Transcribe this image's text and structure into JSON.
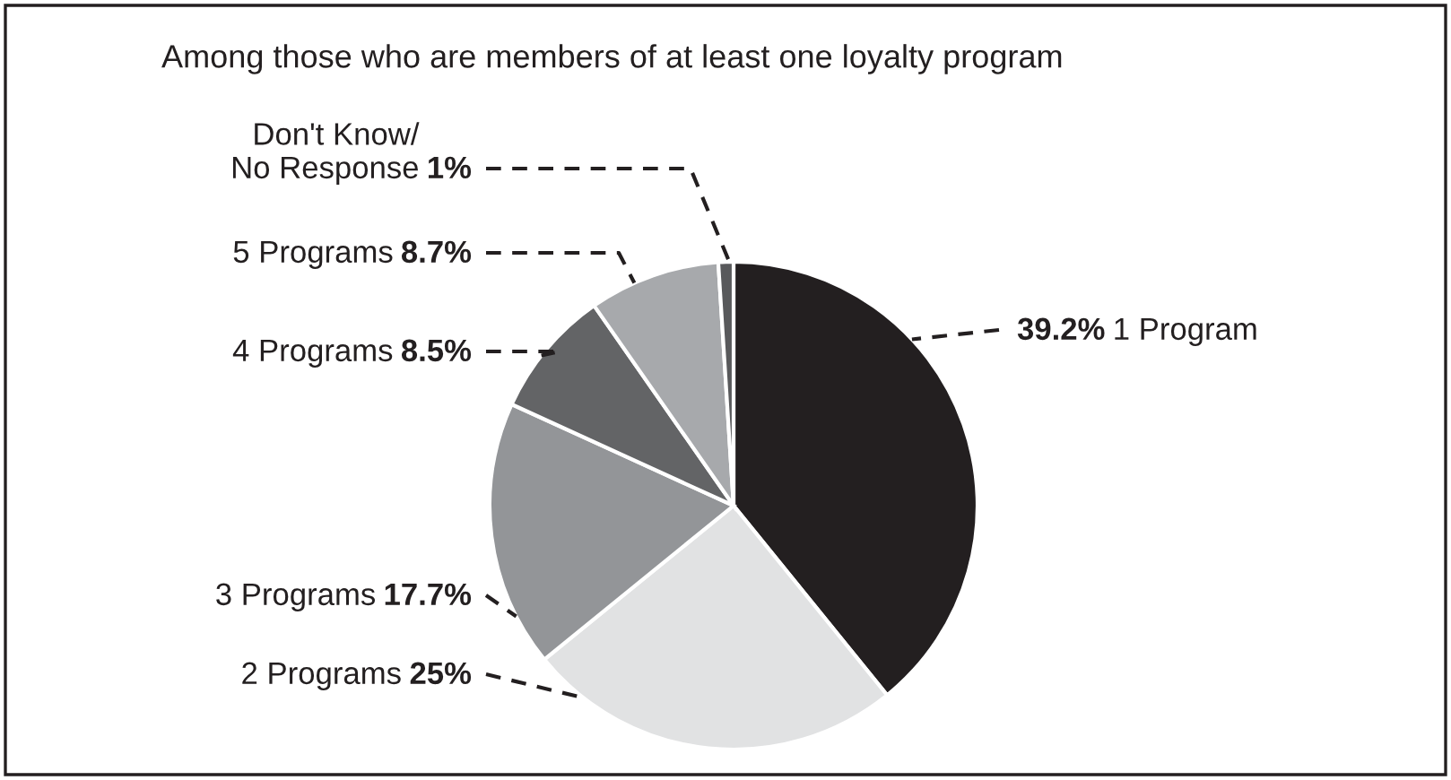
{
  "chart_data": {
    "type": "pie",
    "title": "Among those who are members of at least one loyalty program",
    "categories": [
      "1 Program",
      "2 Programs",
      "3 Programs",
      "4 Programs",
      "5 Programs",
      "Don't Know/\nNo Response"
    ],
    "values": [
      39.2,
      25,
      17.7,
      8.5,
      8.7,
      1
    ],
    "value_labels": [
      "39.2%",
      "25%",
      "17.7%",
      "8.5%",
      "8.7%",
      "1%"
    ],
    "colors": [
      "#231f20",
      "#e1e2e3",
      "#939598",
      "#636466",
      "#a7a9ac",
      "#58595b"
    ]
  }
}
